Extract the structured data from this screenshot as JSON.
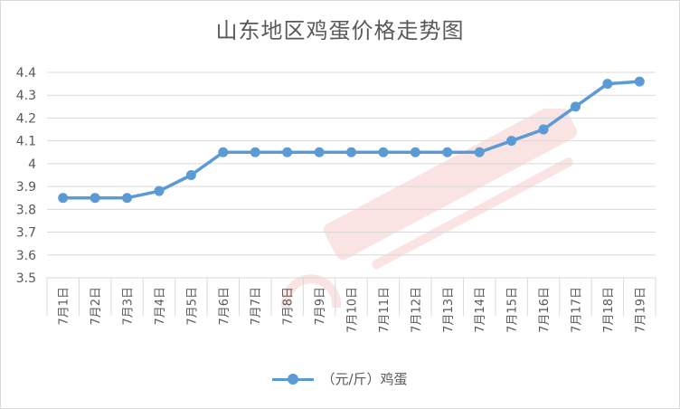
{
  "colors": {
    "series": "#5b9bd5",
    "grid": "#d9d9d9",
    "text": "#595959"
  },
  "chart_data": {
    "type": "line",
    "title": "山东地区鸡蛋价格走势图",
    "categories": [
      "7月1日",
      "7月2日",
      "7月3日",
      "7月4日",
      "7月5日",
      "7月6日",
      "7月7日",
      "7月8日",
      "7月9日",
      "7月10日",
      "7月11日",
      "7月12日",
      "7月13日",
      "7月14日",
      "7月15日",
      "7月16日",
      "7月17日",
      "7月18日",
      "7月19日"
    ],
    "series": [
      {
        "name": "（元/斤）鸡蛋",
        "values": [
          3.85,
          3.85,
          3.85,
          3.88,
          3.95,
          4.05,
          4.05,
          4.05,
          4.05,
          4.05,
          4.05,
          4.05,
          4.05,
          4.05,
          4.1,
          4.15,
          4.25,
          4.35,
          4.36
        ]
      }
    ],
    "ylim": [
      3.5,
      4.4
    ],
    "yticks": [
      "3.5",
      "3.6",
      "3.7",
      "3.8",
      "3.9",
      "4",
      "4.1",
      "4.2",
      "4.3",
      "4.4"
    ],
    "grid": true,
    "legend": "bottom"
  }
}
